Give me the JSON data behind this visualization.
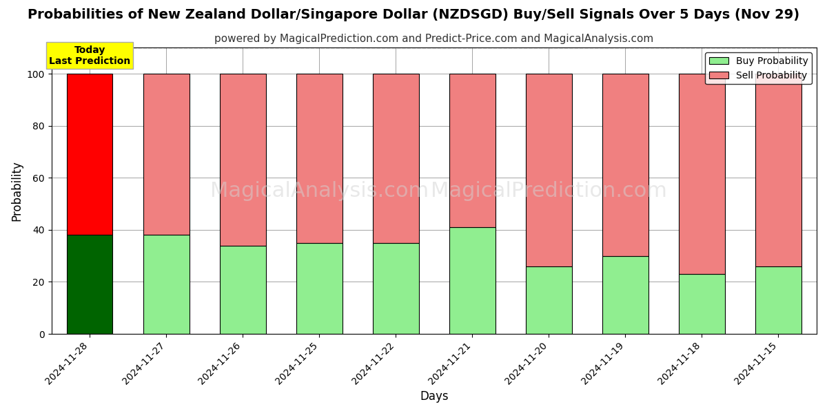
{
  "title": "Probabilities of New Zealand Dollar/Singapore Dollar (NZDSGD) Buy/Sell Signals Over 5 Days (Nov 29)",
  "subtitle": "powered by MagicalPrediction.com and Predict-Price.com and MagicalAnalysis.com",
  "xlabel": "Days",
  "ylabel": "Probability",
  "categories": [
    "2024-11-28",
    "2024-11-27",
    "2024-11-26",
    "2024-11-25",
    "2024-11-22",
    "2024-11-21",
    "2024-11-20",
    "2024-11-19",
    "2024-11-18",
    "2024-11-15"
  ],
  "buy_values": [
    38,
    38,
    34,
    35,
    35,
    41,
    26,
    30,
    23,
    26
  ],
  "sell_values": [
    62,
    62,
    66,
    65,
    65,
    59,
    74,
    70,
    77,
    74
  ],
  "today_buy_color": "#006400",
  "today_sell_color": "#ff0000",
  "buy_color": "#90ee90",
  "sell_color": "#f08080",
  "today_label_bg": "#ffff00",
  "today_label_text": "Today\nLast Prediction",
  "legend_buy": "Buy Probability",
  "legend_sell": "Sell Probability",
  "ylim": [
    0,
    110
  ],
  "dashed_line_y": 110,
  "watermark1": "MagicalAnalysis.com",
  "watermark2": "MagicalPrediction.com",
  "title_fontsize": 14,
  "subtitle_fontsize": 11,
  "bar_edgecolor": "#000000",
  "bar_linewidth": 0.8
}
